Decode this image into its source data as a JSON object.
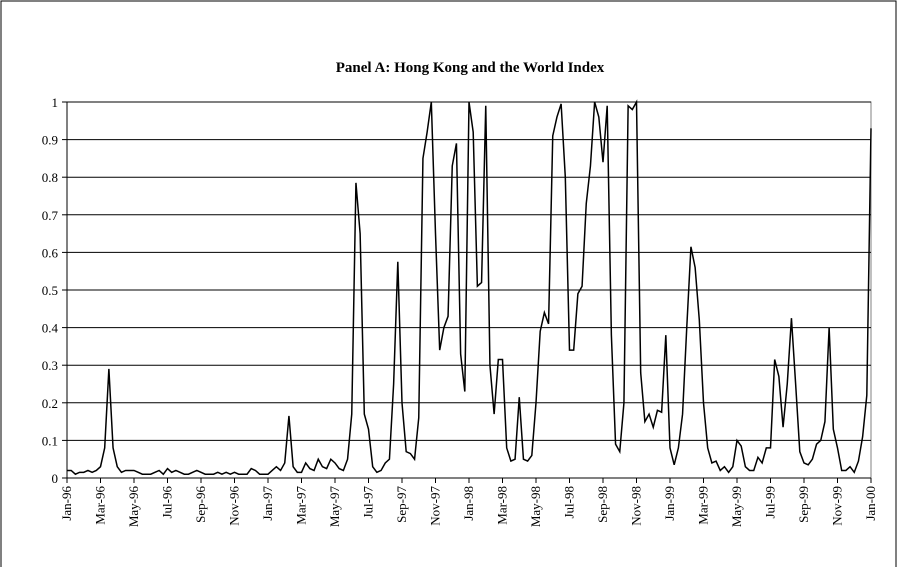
{
  "chart_data": {
    "type": "line",
    "title": "Panel A: Hong Kong and the World Index",
    "categories": [
      "Jan-96",
      null,
      null,
      null,
      null,
      null,
      null,
      null,
      "Mar-96",
      null,
      null,
      null,
      null,
      null,
      null,
      null,
      "May-96",
      null,
      null,
      null,
      null,
      null,
      null,
      null,
      "Jul-96",
      null,
      null,
      null,
      null,
      null,
      null,
      null,
      "Sep-96",
      null,
      null,
      null,
      null,
      null,
      null,
      null,
      "Nov-96",
      null,
      null,
      null,
      null,
      null,
      null,
      null,
      "Jan-97",
      null,
      null,
      null,
      null,
      null,
      null,
      null,
      "Mar-97",
      null,
      null,
      null,
      null,
      null,
      null,
      null,
      "May-97",
      null,
      null,
      null,
      null,
      null,
      null,
      null,
      "Jul-97",
      null,
      null,
      null,
      null,
      null,
      null,
      null,
      "Sep-97",
      null,
      null,
      null,
      null,
      null,
      null,
      null,
      "Nov-97",
      null,
      null,
      null,
      null,
      null,
      null,
      null,
      "Jan-98",
      null,
      null,
      null,
      null,
      null,
      null,
      null,
      "Mar-98",
      null,
      null,
      null,
      null,
      null,
      null,
      null,
      "May-98",
      null,
      null,
      null,
      null,
      null,
      null,
      null,
      "Jul-98",
      null,
      null,
      null,
      null,
      null,
      null,
      null,
      "Sep-98",
      null,
      null,
      null,
      null,
      null,
      null,
      null,
      "Nov-98",
      null,
      null,
      null,
      null,
      null,
      null,
      null,
      "Jan-99",
      null,
      null,
      null,
      null,
      null,
      null,
      null,
      "Mar-99",
      null,
      null,
      null,
      null,
      null,
      null,
      null,
      "May-99",
      null,
      null,
      null,
      null,
      null,
      null,
      null,
      "Jul-99",
      null,
      null,
      null,
      null,
      null,
      null,
      null,
      "Sep-99",
      null,
      null,
      null,
      null,
      null,
      null,
      null,
      "Nov-99",
      null,
      null,
      null,
      null,
      null,
      null,
      null,
      "Jan-00"
    ],
    "values": [
      0.02,
      0.02,
      0.01,
      0.015,
      0.015,
      0.02,
      0.015,
      0.02,
      0.03,
      0.08,
      0.29,
      0.08,
      0.03,
      0.015,
      0.02,
      0.02,
      0.02,
      0.015,
      0.01,
      0.01,
      0.01,
      0.015,
      0.02,
      0.01,
      0.025,
      0.015,
      0.02,
      0.015,
      0.01,
      0.01,
      0.015,
      0.02,
      0.015,
      0.01,
      0.01,
      0.01,
      0.015,
      0.01,
      0.015,
      0.01,
      0.015,
      0.01,
      0.01,
      0.01,
      0.025,
      0.02,
      0.01,
      0.01,
      0.01,
      0.02,
      0.03,
      0.02,
      0.04,
      0.165,
      0.03,
      0.015,
      0.015,
      0.04,
      0.025,
      0.02,
      0.05,
      0.03,
      0.025,
      0.05,
      0.04,
      0.025,
      0.02,
      0.05,
      0.17,
      0.785,
      0.65,
      0.17,
      0.13,
      0.03,
      0.015,
      0.02,
      0.04,
      0.05,
      0.25,
      0.575,
      0.2,
      0.07,
      0.065,
      0.05,
      0.16,
      0.85,
      0.92,
      1.0,
      0.65,
      0.34,
      0.4,
      0.43,
      0.83,
      0.89,
      0.33,
      0.23,
      1.0,
      0.92,
      0.51,
      0.52,
      0.99,
      0.3,
      0.17,
      0.315,
      0.315,
      0.08,
      0.045,
      0.05,
      0.215,
      0.05,
      0.045,
      0.06,
      0.2,
      0.39,
      0.44,
      0.41,
      0.91,
      0.96,
      0.995,
      0.8,
      0.34,
      0.34,
      0.49,
      0.51,
      0.73,
      0.83,
      1.0,
      0.96,
      0.84,
      0.99,
      0.38,
      0.09,
      0.07,
      0.2,
      0.99,
      0.98,
      1.0,
      0.28,
      0.15,
      0.17,
      0.135,
      0.18,
      0.175,
      0.38,
      0.08,
      0.035,
      0.08,
      0.17,
      0.4,
      0.615,
      0.56,
      0.42,
      0.2,
      0.08,
      0.04,
      0.045,
      0.02,
      0.03,
      0.015,
      0.03,
      0.1,
      0.085,
      0.03,
      0.02,
      0.02,
      0.055,
      0.04,
      0.08,
      0.08,
      0.315,
      0.27,
      0.135,
      0.25,
      0.425,
      0.25,
      0.07,
      0.04,
      0.035,
      0.05,
      0.09,
      0.1,
      0.15,
      0.4,
      0.13,
      0.08,
      0.02,
      0.02,
      0.03,
      0.015,
      0.045,
      0.11,
      0.22,
      0.93
    ],
    "color": "#000000",
    "ylim": [
      0,
      1
    ],
    "yticks": [
      0,
      0.1,
      0.2,
      0.3,
      0.4,
      0.5,
      0.6,
      0.7,
      0.8,
      0.9,
      1
    ],
    "grid": true
  }
}
